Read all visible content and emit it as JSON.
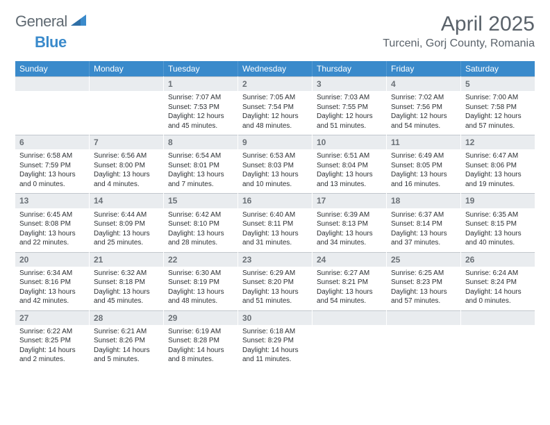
{
  "brand": {
    "name_part1": "General",
    "name_part2": "Blue"
  },
  "colors": {
    "accent": "#3a8acb",
    "header_text": "#5a626a",
    "daynum_bg": "#e9ecef",
    "daynum_text": "#6a7076",
    "daynum_border": "#c2c7cd",
    "body_text": "#2b2f33",
    "background": "#ffffff"
  },
  "title": "April 2025",
  "location": "Turceni, Gorj County, Romania",
  "weekdays": [
    "Sunday",
    "Monday",
    "Tuesday",
    "Wednesday",
    "Thursday",
    "Friday",
    "Saturday"
  ],
  "weeks": [
    [
      {
        "empty": true
      },
      {
        "empty": true
      },
      {
        "num": "1",
        "sunrise": "Sunrise: 7:07 AM",
        "sunset": "Sunset: 7:53 PM",
        "daylight1": "Daylight: 12 hours",
        "daylight2": "and 45 minutes."
      },
      {
        "num": "2",
        "sunrise": "Sunrise: 7:05 AM",
        "sunset": "Sunset: 7:54 PM",
        "daylight1": "Daylight: 12 hours",
        "daylight2": "and 48 minutes."
      },
      {
        "num": "3",
        "sunrise": "Sunrise: 7:03 AM",
        "sunset": "Sunset: 7:55 PM",
        "daylight1": "Daylight: 12 hours",
        "daylight2": "and 51 minutes."
      },
      {
        "num": "4",
        "sunrise": "Sunrise: 7:02 AM",
        "sunset": "Sunset: 7:56 PM",
        "daylight1": "Daylight: 12 hours",
        "daylight2": "and 54 minutes."
      },
      {
        "num": "5",
        "sunrise": "Sunrise: 7:00 AM",
        "sunset": "Sunset: 7:58 PM",
        "daylight1": "Daylight: 12 hours",
        "daylight2": "and 57 minutes."
      }
    ],
    [
      {
        "num": "6",
        "sunrise": "Sunrise: 6:58 AM",
        "sunset": "Sunset: 7:59 PM",
        "daylight1": "Daylight: 13 hours",
        "daylight2": "and 0 minutes."
      },
      {
        "num": "7",
        "sunrise": "Sunrise: 6:56 AM",
        "sunset": "Sunset: 8:00 PM",
        "daylight1": "Daylight: 13 hours",
        "daylight2": "and 4 minutes."
      },
      {
        "num": "8",
        "sunrise": "Sunrise: 6:54 AM",
        "sunset": "Sunset: 8:01 PM",
        "daylight1": "Daylight: 13 hours",
        "daylight2": "and 7 minutes."
      },
      {
        "num": "9",
        "sunrise": "Sunrise: 6:53 AM",
        "sunset": "Sunset: 8:03 PM",
        "daylight1": "Daylight: 13 hours",
        "daylight2": "and 10 minutes."
      },
      {
        "num": "10",
        "sunrise": "Sunrise: 6:51 AM",
        "sunset": "Sunset: 8:04 PM",
        "daylight1": "Daylight: 13 hours",
        "daylight2": "and 13 minutes."
      },
      {
        "num": "11",
        "sunrise": "Sunrise: 6:49 AM",
        "sunset": "Sunset: 8:05 PM",
        "daylight1": "Daylight: 13 hours",
        "daylight2": "and 16 minutes."
      },
      {
        "num": "12",
        "sunrise": "Sunrise: 6:47 AM",
        "sunset": "Sunset: 8:06 PM",
        "daylight1": "Daylight: 13 hours",
        "daylight2": "and 19 minutes."
      }
    ],
    [
      {
        "num": "13",
        "sunrise": "Sunrise: 6:45 AM",
        "sunset": "Sunset: 8:08 PM",
        "daylight1": "Daylight: 13 hours",
        "daylight2": "and 22 minutes."
      },
      {
        "num": "14",
        "sunrise": "Sunrise: 6:44 AM",
        "sunset": "Sunset: 8:09 PM",
        "daylight1": "Daylight: 13 hours",
        "daylight2": "and 25 minutes."
      },
      {
        "num": "15",
        "sunrise": "Sunrise: 6:42 AM",
        "sunset": "Sunset: 8:10 PM",
        "daylight1": "Daylight: 13 hours",
        "daylight2": "and 28 minutes."
      },
      {
        "num": "16",
        "sunrise": "Sunrise: 6:40 AM",
        "sunset": "Sunset: 8:11 PM",
        "daylight1": "Daylight: 13 hours",
        "daylight2": "and 31 minutes."
      },
      {
        "num": "17",
        "sunrise": "Sunrise: 6:39 AM",
        "sunset": "Sunset: 8:13 PM",
        "daylight1": "Daylight: 13 hours",
        "daylight2": "and 34 minutes."
      },
      {
        "num": "18",
        "sunrise": "Sunrise: 6:37 AM",
        "sunset": "Sunset: 8:14 PM",
        "daylight1": "Daylight: 13 hours",
        "daylight2": "and 37 minutes."
      },
      {
        "num": "19",
        "sunrise": "Sunrise: 6:35 AM",
        "sunset": "Sunset: 8:15 PM",
        "daylight1": "Daylight: 13 hours",
        "daylight2": "and 40 minutes."
      }
    ],
    [
      {
        "num": "20",
        "sunrise": "Sunrise: 6:34 AM",
        "sunset": "Sunset: 8:16 PM",
        "daylight1": "Daylight: 13 hours",
        "daylight2": "and 42 minutes."
      },
      {
        "num": "21",
        "sunrise": "Sunrise: 6:32 AM",
        "sunset": "Sunset: 8:18 PM",
        "daylight1": "Daylight: 13 hours",
        "daylight2": "and 45 minutes."
      },
      {
        "num": "22",
        "sunrise": "Sunrise: 6:30 AM",
        "sunset": "Sunset: 8:19 PM",
        "daylight1": "Daylight: 13 hours",
        "daylight2": "and 48 minutes."
      },
      {
        "num": "23",
        "sunrise": "Sunrise: 6:29 AM",
        "sunset": "Sunset: 8:20 PM",
        "daylight1": "Daylight: 13 hours",
        "daylight2": "and 51 minutes."
      },
      {
        "num": "24",
        "sunrise": "Sunrise: 6:27 AM",
        "sunset": "Sunset: 8:21 PM",
        "daylight1": "Daylight: 13 hours",
        "daylight2": "and 54 minutes."
      },
      {
        "num": "25",
        "sunrise": "Sunrise: 6:25 AM",
        "sunset": "Sunset: 8:23 PM",
        "daylight1": "Daylight: 13 hours",
        "daylight2": "and 57 minutes."
      },
      {
        "num": "26",
        "sunrise": "Sunrise: 6:24 AM",
        "sunset": "Sunset: 8:24 PM",
        "daylight1": "Daylight: 14 hours",
        "daylight2": "and 0 minutes."
      }
    ],
    [
      {
        "num": "27",
        "sunrise": "Sunrise: 6:22 AM",
        "sunset": "Sunset: 8:25 PM",
        "daylight1": "Daylight: 14 hours",
        "daylight2": "and 2 minutes."
      },
      {
        "num": "28",
        "sunrise": "Sunrise: 6:21 AM",
        "sunset": "Sunset: 8:26 PM",
        "daylight1": "Daylight: 14 hours",
        "daylight2": "and 5 minutes."
      },
      {
        "num": "29",
        "sunrise": "Sunrise: 6:19 AM",
        "sunset": "Sunset: 8:28 PM",
        "daylight1": "Daylight: 14 hours",
        "daylight2": "and 8 minutes."
      },
      {
        "num": "30",
        "sunrise": "Sunrise: 6:18 AM",
        "sunset": "Sunset: 8:29 PM",
        "daylight1": "Daylight: 14 hours",
        "daylight2": "and 11 minutes."
      },
      {
        "empty": true
      },
      {
        "empty": true
      },
      {
        "empty": true
      }
    ]
  ]
}
